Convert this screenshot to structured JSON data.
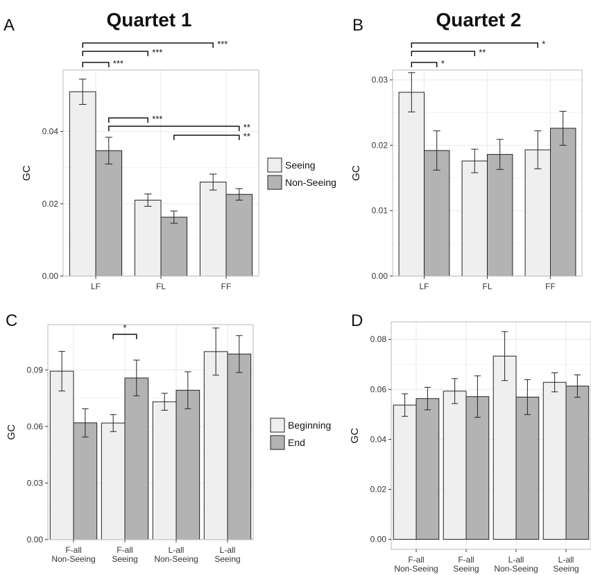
{
  "colors": {
    "light_bar": "#efefef",
    "dark_bar": "#b3b3b3",
    "panel_border": "#b8b8b8",
    "grid": "#ececec",
    "bar_stroke": "#222222"
  },
  "chart_data": [
    {
      "panel": "A",
      "title": "Quartet 1",
      "type": "bar",
      "ylabel": "GC",
      "xlabel": "",
      "categories": [
        "LF",
        "FL",
        "FF"
      ],
      "ylim": [
        0,
        0.057
      ],
      "yticks": [
        "0.00",
        "0.02",
        "0.04"
      ],
      "yticks_values": [
        0,
        0.02,
        0.04
      ],
      "grid": true,
      "series": [
        {
          "name": "Seeing",
          "values": [
            0.051,
            0.021,
            0.026
          ],
          "errors": [
            0.0035,
            0.0017,
            0.0022
          ]
        },
        {
          "name": "Non-Seeing",
          "values": [
            0.0347,
            0.0163,
            0.0226
          ],
          "errors": [
            0.0037,
            0.0017,
            0.0016
          ]
        }
      ],
      "legend": {
        "entries": [
          "Seeing",
          "Non-Seeing"
        ],
        "placement": "right"
      },
      "significance": [
        {
          "from": [
            0,
            0
          ],
          "to": [
            0,
            1
          ],
          "label": "***"
        },
        {
          "from": [
            0,
            0
          ],
          "to": [
            1,
            0
          ],
          "label": "***"
        },
        {
          "from": [
            0,
            0
          ],
          "to": [
            2,
            0
          ],
          "label": "***"
        },
        {
          "from": [
            0,
            1
          ],
          "to": [
            1,
            0
          ],
          "label": "***"
        },
        {
          "from": [
            0,
            1
          ],
          "to": [
            2,
            1
          ],
          "label": "**"
        },
        {
          "from": [
            1,
            1
          ],
          "to": [
            2,
            1
          ],
          "label": "**"
        }
      ]
    },
    {
      "panel": "B",
      "title": "Quartet 2",
      "type": "bar",
      "ylabel": "GC",
      "xlabel": "",
      "categories": [
        "LF",
        "FL",
        "FF"
      ],
      "ylim": [
        0,
        0.0315
      ],
      "yticks": [
        "0.00",
        "0.01",
        "0.02",
        "0.03"
      ],
      "yticks_values": [
        0,
        0.01,
        0.02,
        0.03
      ],
      "grid": true,
      "series": [
        {
          "name": "Seeing",
          "values": [
            0.0281,
            0.0176,
            0.0193
          ],
          "errors": [
            0.003,
            0.0018,
            0.0029
          ]
        },
        {
          "name": "Non-Seeing",
          "values": [
            0.0192,
            0.0186,
            0.0226
          ],
          "errors": [
            0.003,
            0.0023,
            0.0026
          ]
        }
      ],
      "legend": null,
      "significance": [
        {
          "from": [
            0,
            0
          ],
          "to": [
            0,
            1
          ],
          "label": "*"
        },
        {
          "from": [
            0,
            0
          ],
          "to": [
            1,
            0
          ],
          "label": "**"
        },
        {
          "from": [
            0,
            0
          ],
          "to": [
            2,
            0
          ],
          "label": "*"
        }
      ]
    },
    {
      "panel": "C",
      "title": "",
      "type": "bar",
      "ylabel": "GC",
      "xlabel": "",
      "categories": [
        "F-all\nNon-Seeing",
        "F-all\nSeeing",
        "L-all\nNon-Seeing",
        "L-all\nSeeing"
      ],
      "ylim": [
        0,
        0.114
      ],
      "yticks": [
        "0.00",
        "0.03",
        "0.06",
        "0.09"
      ],
      "yticks_values": [
        0,
        0.03,
        0.06,
        0.09
      ],
      "grid": true,
      "series": [
        {
          "name": "Beginning",
          "values": [
            0.0893,
            0.0618,
            0.0731,
            0.0997
          ],
          "errors": [
            0.0105,
            0.0045,
            0.0045,
            0.0125
          ]
        },
        {
          "name": "End",
          "values": [
            0.0619,
            0.0857,
            0.0792,
            0.0984
          ],
          "errors": [
            0.0075,
            0.0095,
            0.0098,
            0.0098
          ]
        }
      ],
      "legend": {
        "entries": [
          "Beginning",
          "End"
        ],
        "placement": "right"
      },
      "significance": [
        {
          "from": [
            1,
            0
          ],
          "to": [
            1,
            1
          ],
          "label": "*"
        }
      ]
    },
    {
      "panel": "D",
      "title": "",
      "type": "bar",
      "ylabel": "GC",
      "xlabel": "",
      "categories": [
        "F-all\nNon-Seeing",
        "F-all\nSeeing",
        "L-all\nNon-Seeing",
        "L-all\nSeeing"
      ],
      "ylim": [
        -0.004,
        0.087
      ],
      "yticks": [
        "0.00",
        "0.02",
        "0.04",
        "0.06",
        "0.08"
      ],
      "yticks_values": [
        0,
        0.02,
        0.04,
        0.06,
        0.08
      ],
      "grid": true,
      "series": [
        {
          "name": "Beginning",
          "values": [
            0.0537,
            0.0593,
            0.0733,
            0.0628
          ],
          "errors": [
            0.0045,
            0.005,
            0.0098,
            0.0038
          ]
        },
        {
          "name": "End",
          "values": [
            0.0563,
            0.0571,
            0.0569,
            0.0613
          ],
          "errors": [
            0.0045,
            0.0083,
            0.007,
            0.0045
          ]
        }
      ],
      "legend": null,
      "significance": []
    }
  ]
}
